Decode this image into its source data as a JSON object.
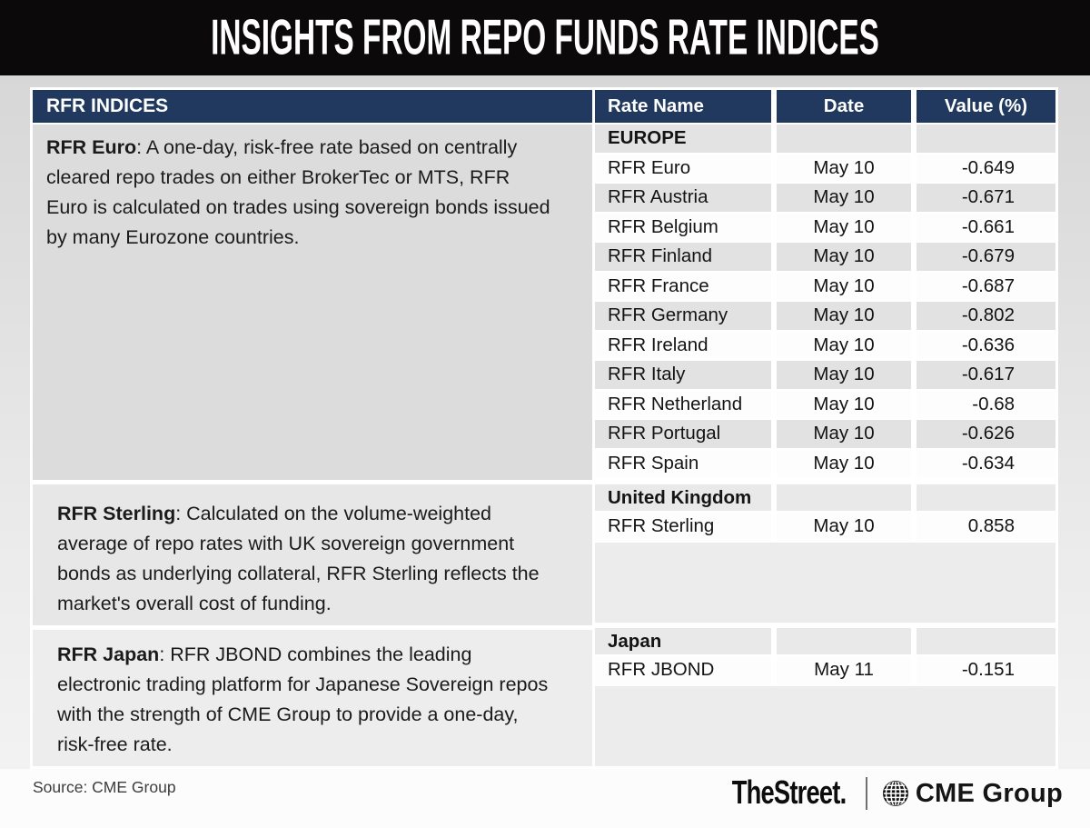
{
  "title": "INSIGHTS FROM REPO FUNDS RATE INDICES",
  "left_panel": {
    "header": "RFR INDICES",
    "sections": [
      {
        "term": "RFR Euro",
        "description": ": A one-day, risk-free rate based on centrally cleared repo trades on either BrokerTec or MTS, RFR Euro is calculated on trades using sovereign bonds issued by many Eurozone countries."
      },
      {
        "term": "RFR Sterling",
        "description": ": Calculated on the volume-weighted average of repo rates with UK sovereign government bonds as underlying collateral, RFR Sterling reflects the market's overall cost of funding."
      },
      {
        "term": "RFR Japan",
        "description": ": RFR JBOND combines the leading electronic trading platform for Japanese Sovereign repos with the strength of CME Group to provide a one-day, risk-free rate."
      }
    ]
  },
  "table": {
    "columns": [
      "Rate Name",
      "Date",
      "Value (%)"
    ],
    "sections": [
      {
        "group": "EUROPE",
        "rows": [
          {
            "name": "RFR Euro",
            "date": "May 10",
            "value": "-0.649"
          },
          {
            "name": "RFR Austria",
            "date": "May 10",
            "value": "-0.671"
          },
          {
            "name": "RFR Belgium",
            "date": "May 10",
            "value": "-0.661"
          },
          {
            "name": "RFR Finland",
            "date": "May 10",
            "value": "-0.679"
          },
          {
            "name": "RFR France",
            "date": "May 10",
            "value": "-0.687"
          },
          {
            "name": "RFR Germany",
            "date": "May 10",
            "value": "-0.802"
          },
          {
            "name": "RFR Ireland",
            "date": "May 10",
            "value": "-0.636"
          },
          {
            "name": "RFR Italy",
            "date": "May 10",
            "value": "-0.617"
          },
          {
            "name": "RFR Netherland",
            "date": "May 10",
            "value": "-0.68"
          },
          {
            "name": "RFR Portugal",
            "date": "May 10",
            "value": "-0.626"
          },
          {
            "name": "RFR Spain",
            "date": "May 10",
            "value": "-0.634"
          }
        ]
      },
      {
        "group": "United Kingdom",
        "rows": [
          {
            "name": "RFR Sterling",
            "date": "May 10",
            "value": "0.858"
          }
        ]
      },
      {
        "group": "Japan",
        "rows": [
          {
            "name": "RFR JBOND",
            "date": "May 11",
            "value": "-0.151"
          }
        ]
      }
    ]
  },
  "footer": {
    "source": "Source: CME Group",
    "thestreet_logo": "TheStreet.",
    "cme_logo": "CME Group",
    "globe_icon": "globe-icon"
  },
  "colors": {
    "navy": "#21395E",
    "banner": "#0B0909",
    "stripe": "#E2E2E2",
    "grp_eu": "#E3E3E3",
    "grp_low": "#E9E9E9",
    "filler": "#ECECEC",
    "s1": "#DCDCDC",
    "s2": "#E7E7E7",
    "s3": "#EDEDED"
  },
  "chart_data": {
    "type": "table",
    "title": "INSIGHTS FROM REPO FUNDS RATE INDICES",
    "columns": [
      "Rate Name",
      "Date",
      "Value (%)"
    ],
    "groups": [
      {
        "name": "EUROPE",
        "rows": [
          [
            "RFR Euro",
            "May 10",
            -0.649
          ],
          [
            "RFR Austria",
            "May 10",
            -0.671
          ],
          [
            "RFR Belgium",
            "May 10",
            -0.661
          ],
          [
            "RFR Finland",
            "May 10",
            -0.679
          ],
          [
            "RFR France",
            "May 10",
            -0.687
          ],
          [
            "RFR Germany",
            "May 10",
            -0.802
          ],
          [
            "RFR Ireland",
            "May 10",
            -0.636
          ],
          [
            "RFR Italy",
            "May 10",
            -0.617
          ],
          [
            "RFR Netherland",
            "May 10",
            -0.68
          ],
          [
            "RFR Portugal",
            "May 10",
            -0.626
          ],
          [
            "RFR Spain",
            "May 10",
            -0.634
          ]
        ]
      },
      {
        "name": "United Kingdom",
        "rows": [
          [
            "RFR Sterling",
            "May 10",
            0.858
          ]
        ]
      },
      {
        "name": "Japan",
        "rows": [
          [
            "RFR JBOND",
            "May 11",
            -0.151
          ]
        ]
      }
    ]
  }
}
